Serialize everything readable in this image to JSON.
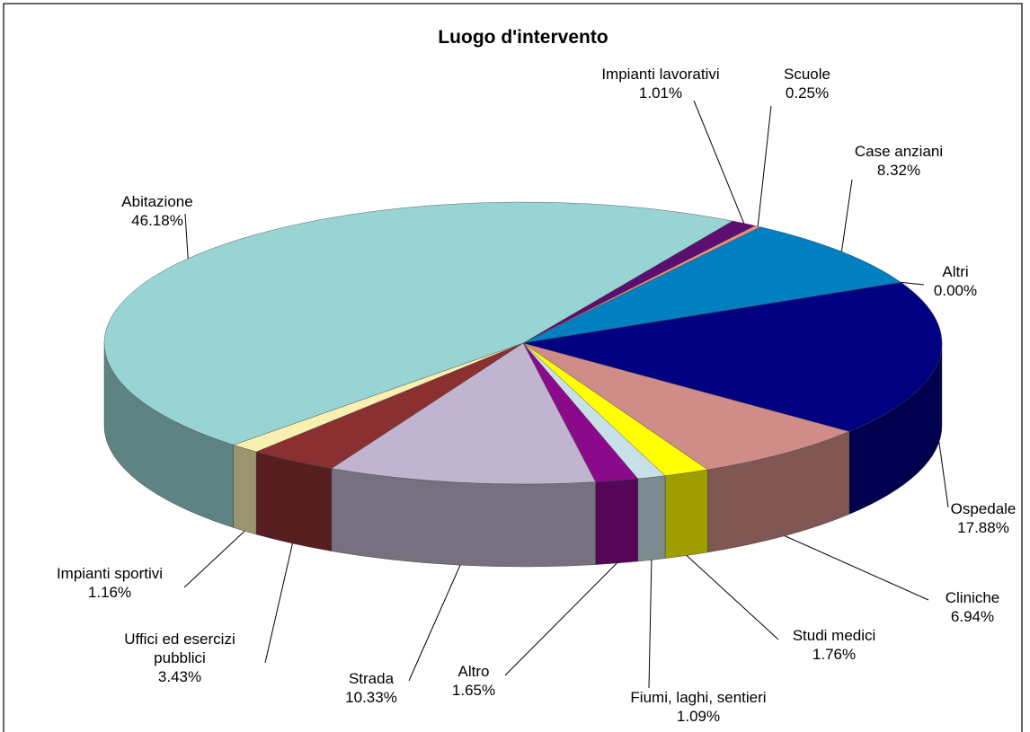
{
  "chart_data": {
    "type": "pie3d",
    "title": "Luogo d'intervento",
    "categories": [
      "Impianti lavorativi",
      "Scuole",
      "Case anziani",
      "Altri",
      "Ospedale",
      "Cliniche",
      "Studi medici",
      "Fiumi, laghi, sentieri",
      "Altro",
      "Strada",
      "Uffici ed esercizi pubblici",
      "Impianti sportivi",
      "Abitazione"
    ],
    "values": [
      1.01,
      0.25,
      8.32,
      0.0,
      17.88,
      6.94,
      1.76,
      1.09,
      1.65,
      10.33,
      3.43,
      1.16,
      46.18
    ],
    "value_labels": [
      "1.01%",
      "0.25%",
      "8.32%",
      "0.00%",
      "17.88%",
      "6.94%",
      "1.76%",
      "1.09%",
      "1.65%",
      "10.33%",
      "3.43%",
      "1.16%",
      "46.18%"
    ],
    "colors": [
      "#5c0f70",
      "#f08a80",
      "#0080c0",
      "#80c8e8",
      "#000080",
      "#d08c88",
      "#ffff00",
      "#c8e0e8",
      "#8b0a8b",
      "#c0b4d0",
      "#8b3030",
      "#f8f0b0",
      "#98d4d4"
    ]
  }
}
